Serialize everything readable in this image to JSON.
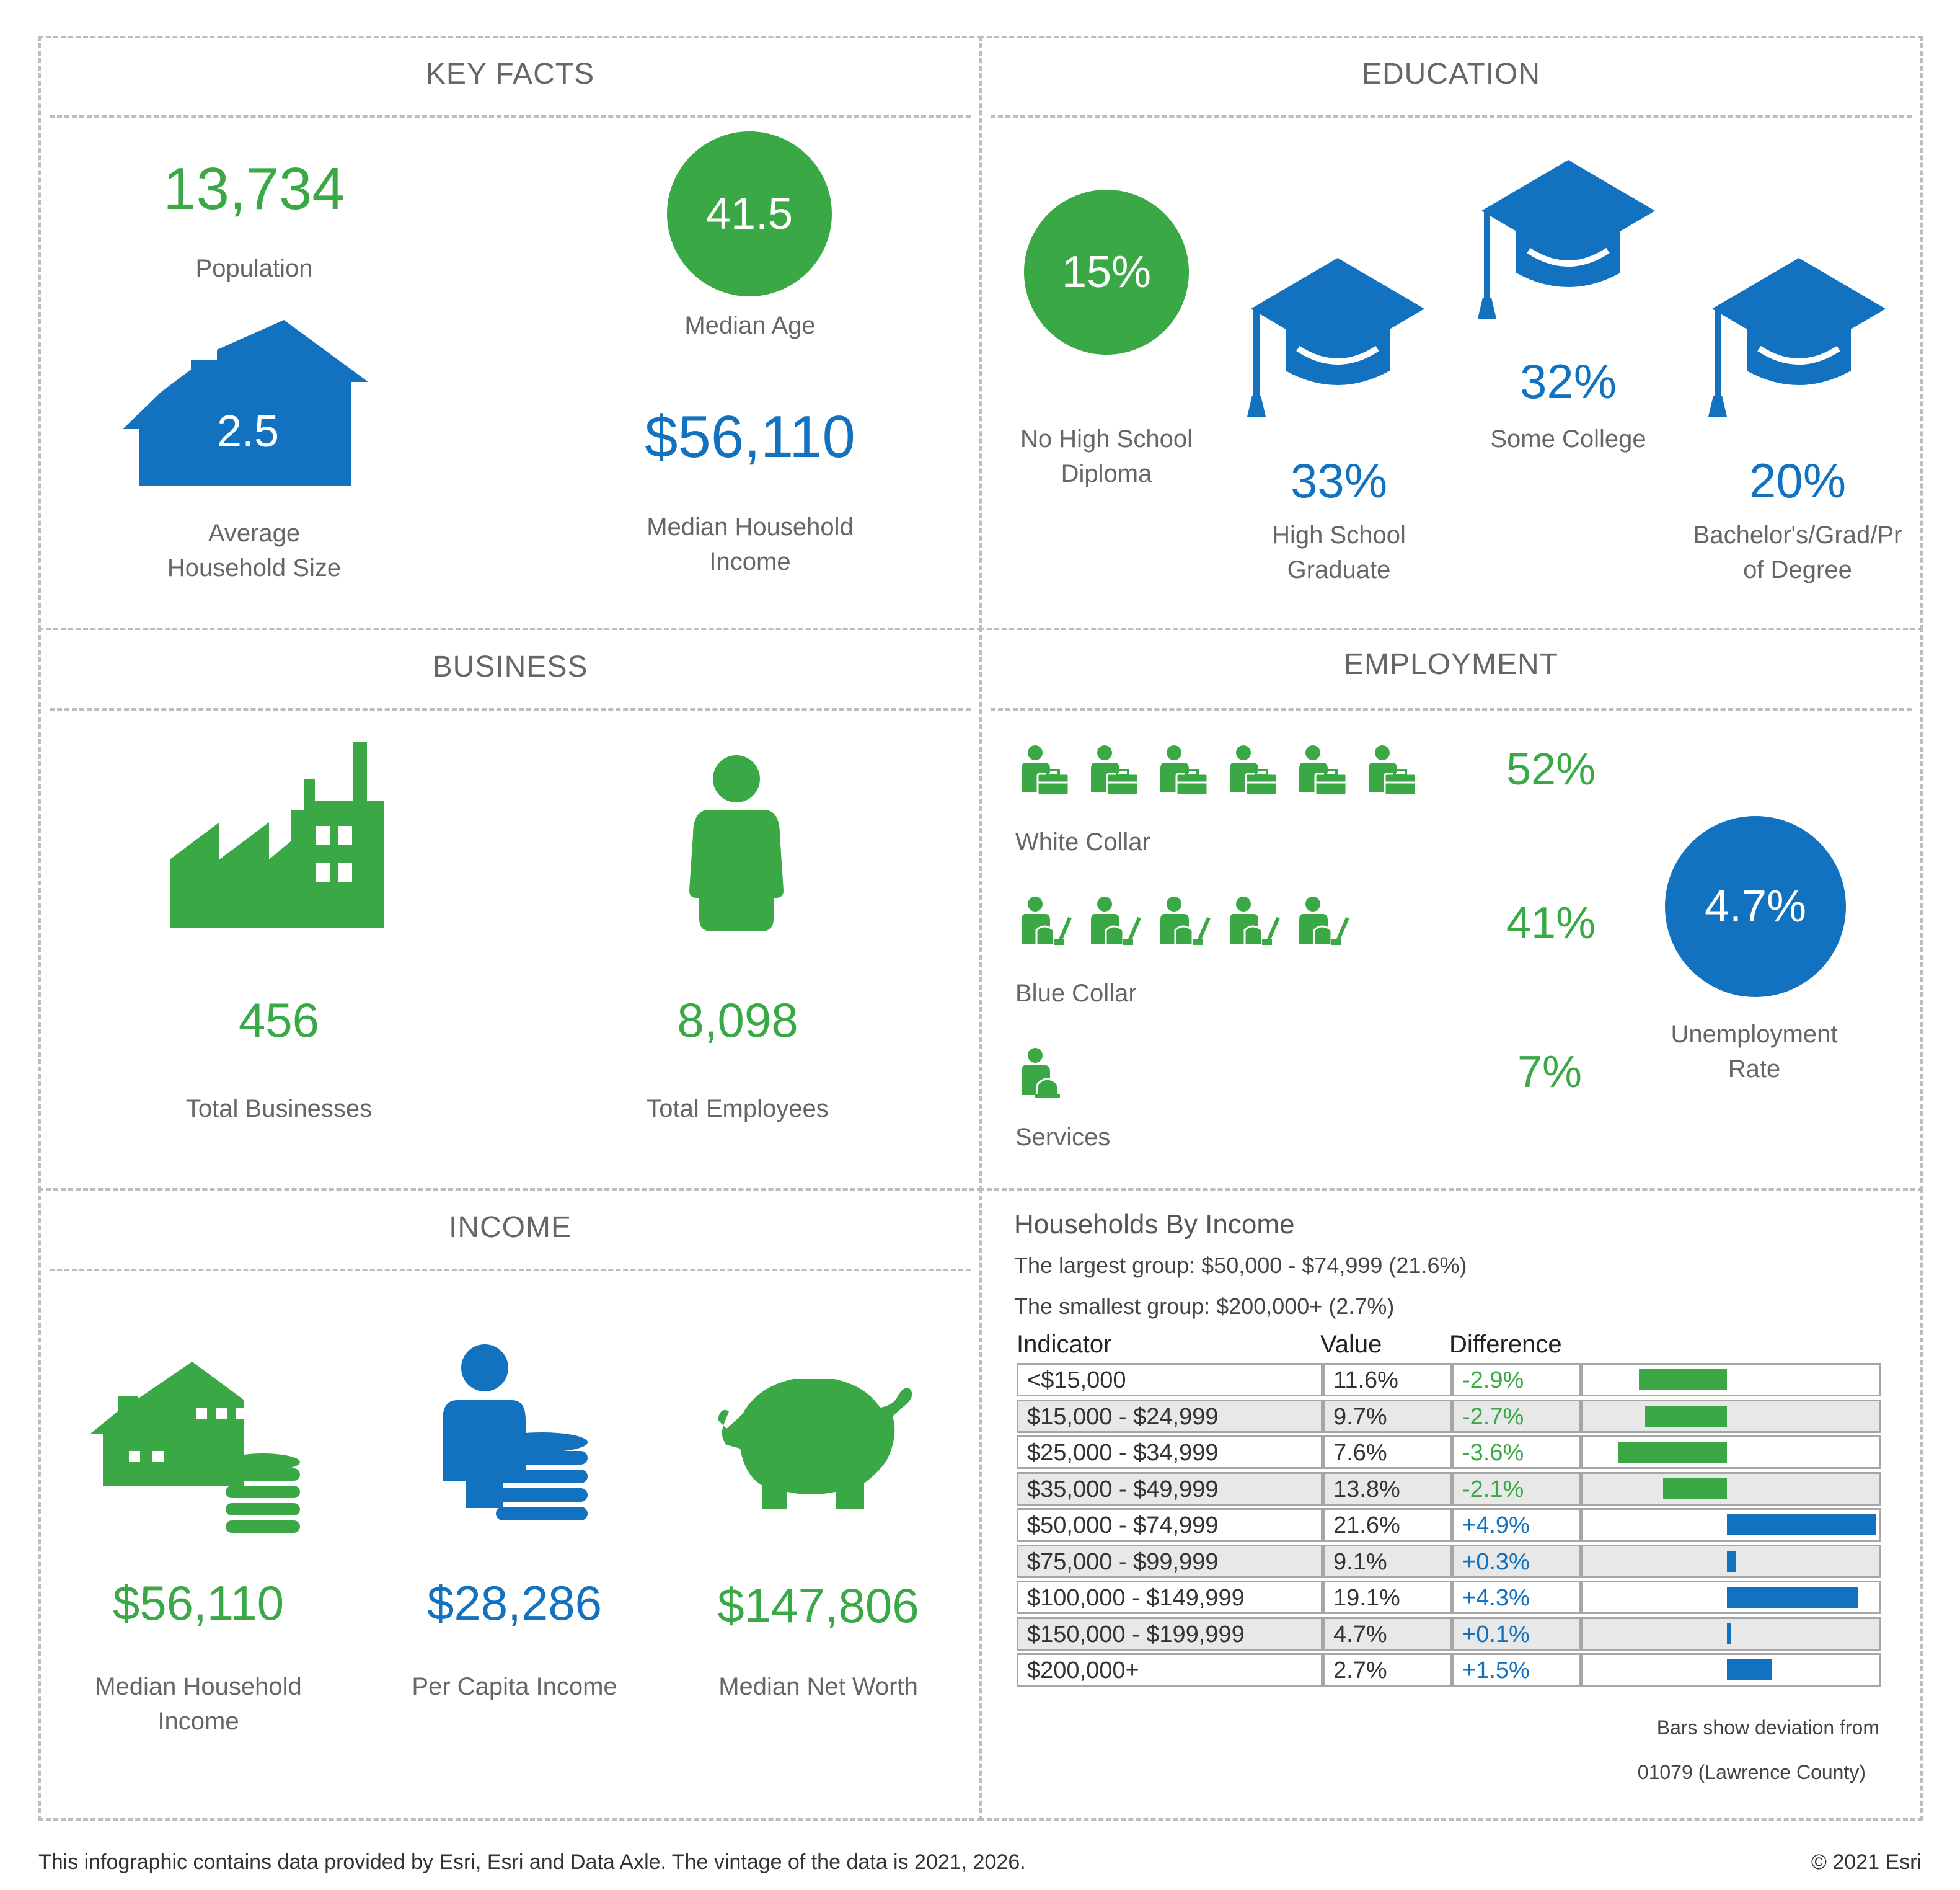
{
  "colors": {
    "green": "#3aa845",
    "blue": "#1272bf",
    "border": "#bdbdbd",
    "row_alt": "#e8e8e8"
  },
  "key_facts": {
    "title": "KEY FACTS",
    "population": {
      "value": "13,734",
      "label": "Population"
    },
    "median_age": {
      "value": "41.5",
      "label": "Median Age"
    },
    "avg_household_size": {
      "value": "2.5",
      "label_line1": "Average",
      "label_line2": "Household Size"
    },
    "median_household_income": {
      "value": "$56,110",
      "label_line1": "Median Household",
      "label_line2": "Income"
    }
  },
  "education": {
    "title": "EDUCATION",
    "no_high_school": {
      "value": "15%",
      "label_line1": "No High School",
      "label_line2": "Diploma"
    },
    "high_school_graduate": {
      "value": "33%",
      "label_line1": "High School",
      "label_line2": "Graduate"
    },
    "some_college": {
      "value": "32%",
      "label": "Some College"
    },
    "bachelors": {
      "value": "20%",
      "label_line1": "Bachelor's/Grad/Pr",
      "label_line2": "of Degree"
    }
  },
  "business": {
    "title": "BUSINESS",
    "total_businesses": {
      "value": "456",
      "label": "Total Businesses"
    },
    "total_employees": {
      "value": "8,098",
      "label": "Total Employees"
    }
  },
  "employment": {
    "title": "EMPLOYMENT",
    "white_collar": {
      "value": "52%",
      "label": "White Collar",
      "icons": 6
    },
    "blue_collar": {
      "value": "41%",
      "label": "Blue Collar",
      "icons": 5
    },
    "services": {
      "value": "7%",
      "label": "Services",
      "icons": 1
    },
    "unemployment": {
      "value": "4.7%",
      "label_line1": "Unemployment",
      "label_line2": "Rate"
    }
  },
  "income": {
    "title": "INCOME",
    "median_household_income": {
      "value": "$56,110",
      "label_line1": "Median Household",
      "label_line2": "Income"
    },
    "per_capita_income": {
      "value": "$28,286",
      "label": "Per Capita Income"
    },
    "median_net_worth": {
      "value": "$147,806",
      "label": "Median Net Worth"
    }
  },
  "households_by_income": {
    "title": "Households By Income",
    "largest_group": "The largest group: $50,000 - $74,999 (21.6%)",
    "smallest_group": "The smallest group: $200,000+ (2.7%)",
    "headers": {
      "indicator": "Indicator",
      "value": "Value",
      "difference": "Difference"
    },
    "note_line1": "Bars show deviation from",
    "note_line2": "01079 (Lawrence County)"
  },
  "chart_data": {
    "type": "bar",
    "title": "Households By Income",
    "categories": [
      "<$15,000",
      "$15,000 - $24,999",
      "$25,000 - $34,999",
      "$35,000 - $49,999",
      "$50,000 - $74,999",
      "$75,000 - $99,999",
      "$100,000 - $149,999",
      "$150,000 - $199,999",
      "$200,000+"
    ],
    "values_label": [
      "11.6%",
      "9.7%",
      "7.6%",
      "13.8%",
      "21.6%",
      "9.1%",
      "19.1%",
      "4.7%",
      "2.7%"
    ],
    "difference_label": [
      "-2.9%",
      "-2.7%",
      "-3.6%",
      "-2.1%",
      "+4.9%",
      "+0.3%",
      "+4.3%",
      "+0.1%",
      "+1.5%"
    ],
    "difference": [
      -2.9,
      -2.7,
      -3.6,
      -2.1,
      4.9,
      0.3,
      4.3,
      0.1,
      1.5
    ],
    "xlim": [
      -3.6,
      4.9
    ]
  },
  "footer": {
    "source": "This infographic contains data provided by Esri, Esri and Data Axle. The vintage of the data is 2021, 2026.",
    "copyright": "© 2021 Esri"
  }
}
